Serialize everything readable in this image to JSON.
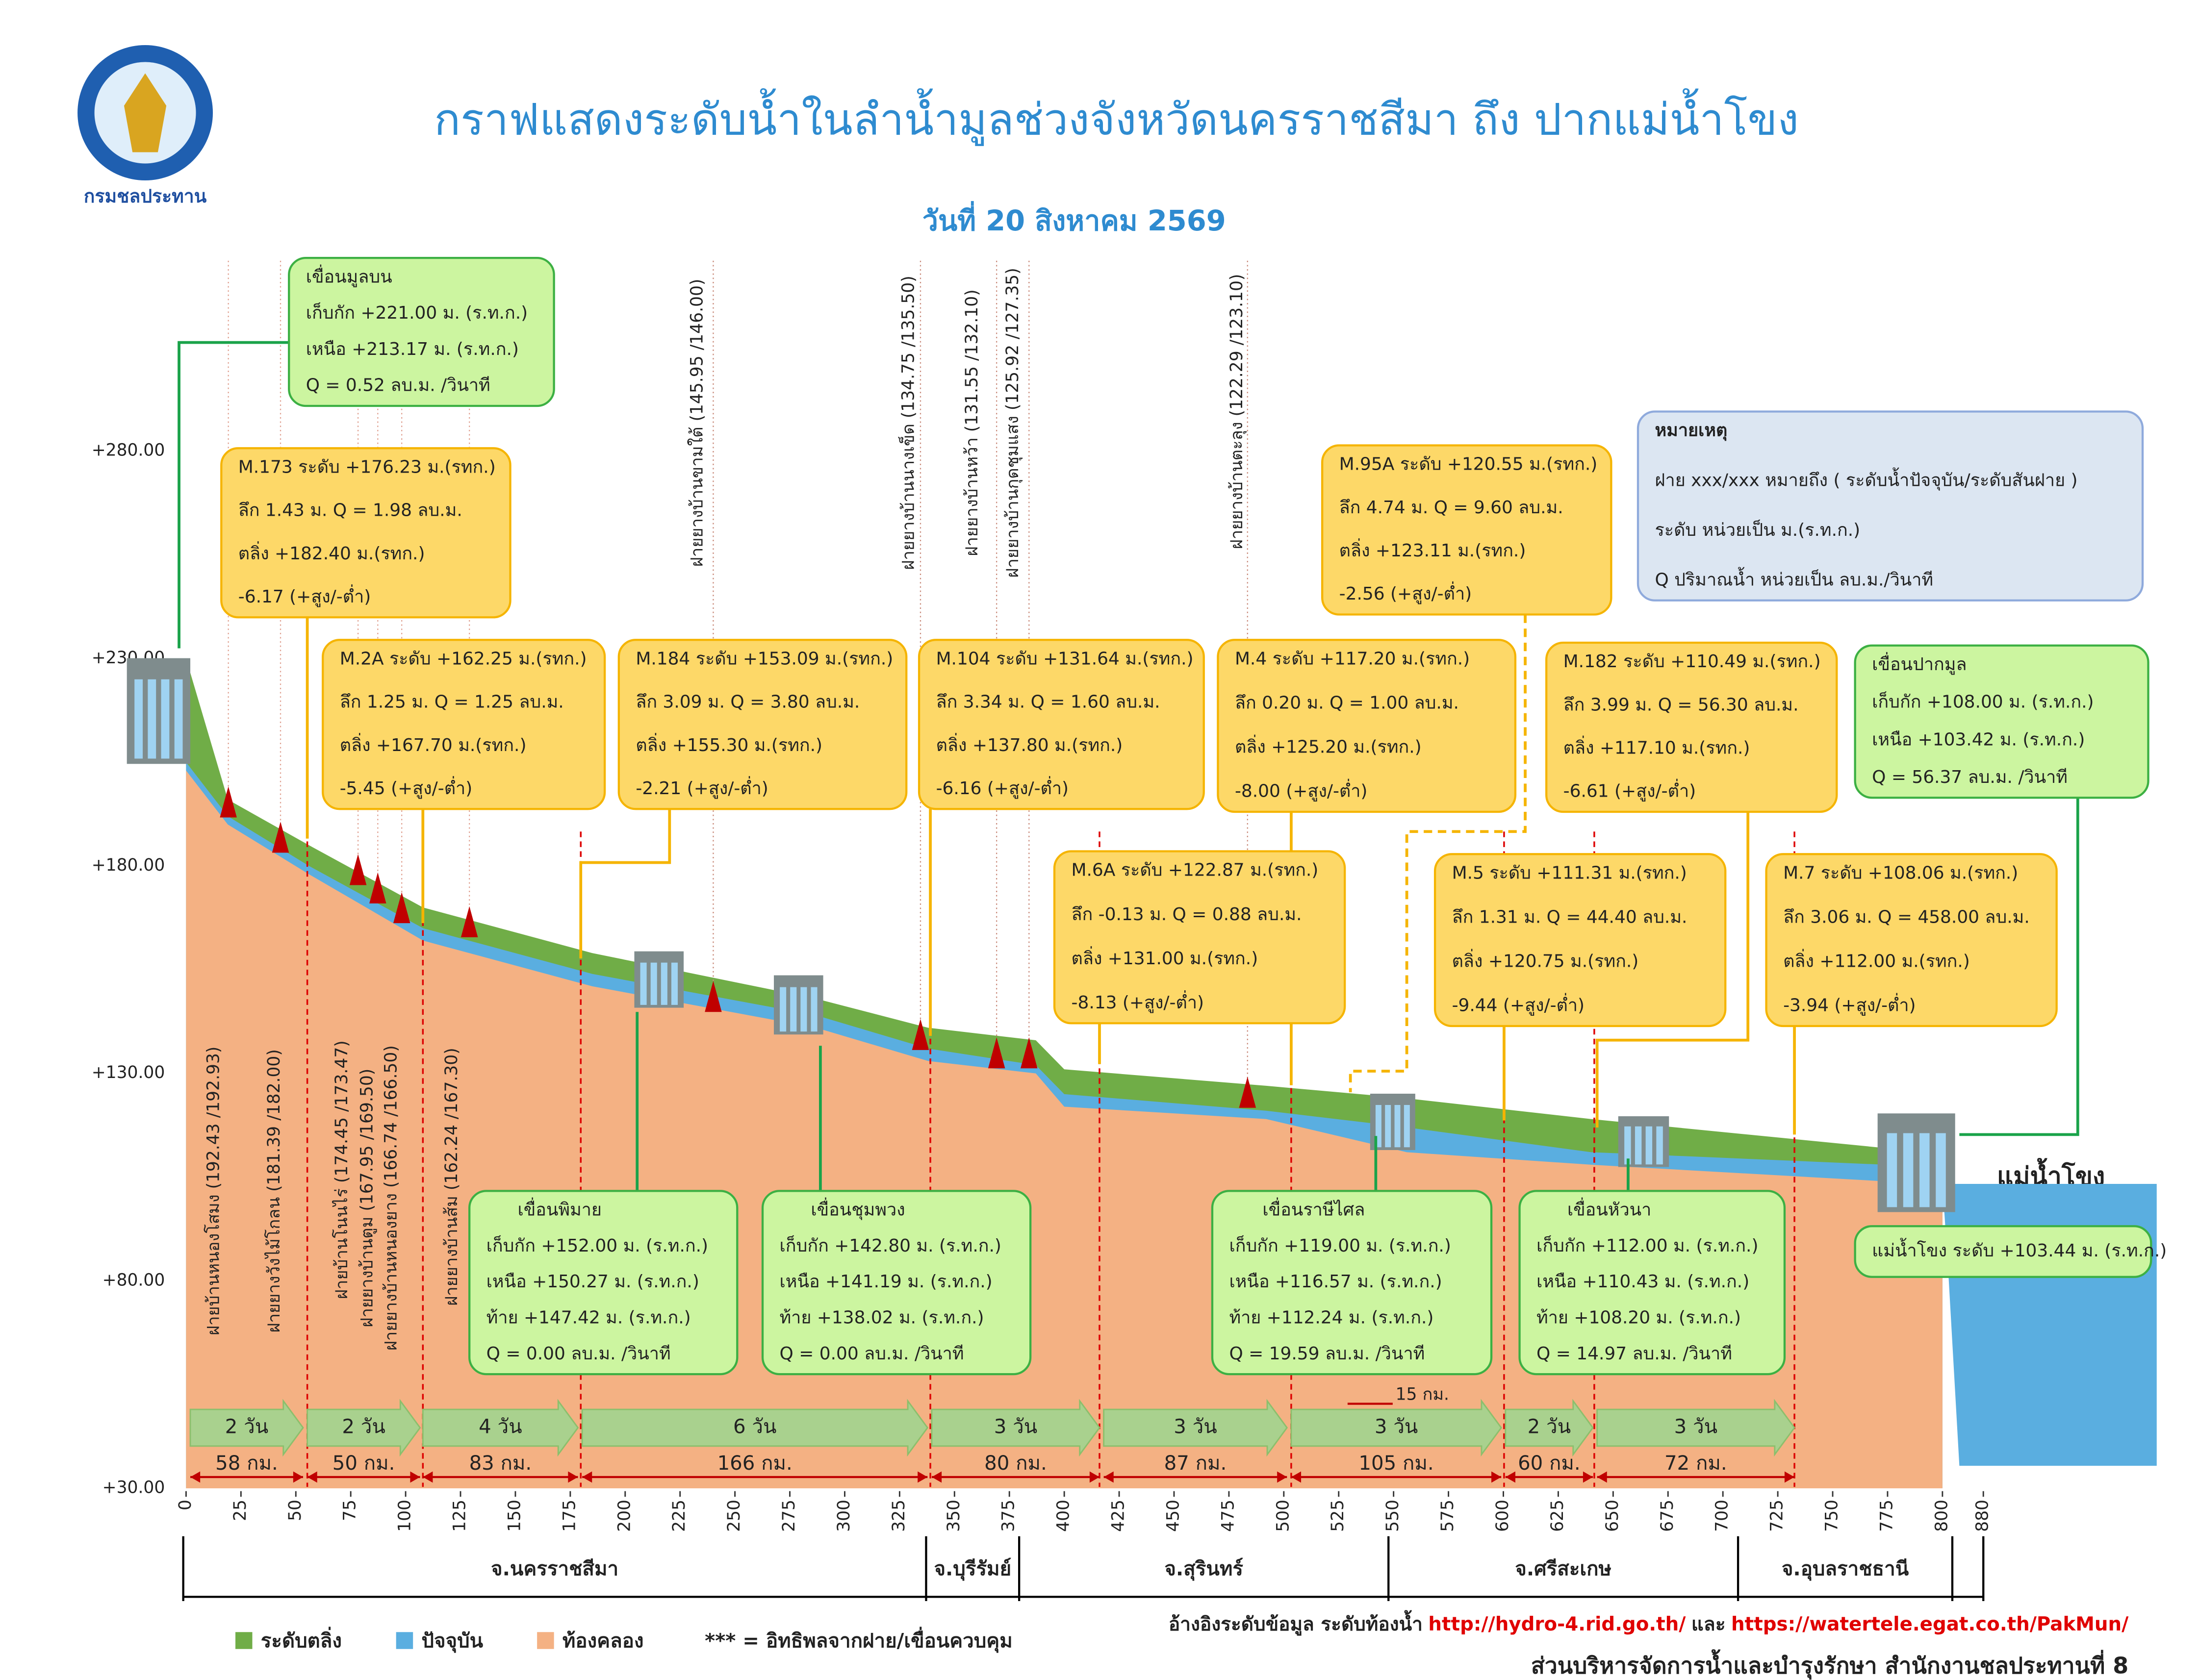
{
  "chart_data": {
    "type": "area",
    "title": "กราฟแสดงระดับน้ำในลำน้ำมูลช่วงจังหวัดนครราชสีมา ถึง ปากแม่น้ำโขง",
    "subtitle": "วันที่ 20 สิงหาคม 2569",
    "logo_text": "กรมชลประทาน",
    "x": [
      0,
      19,
      56,
      108,
      185,
      287,
      338,
      387,
      400,
      492,
      556,
      640,
      774,
      800
    ],
    "series": [
      {
        "name": "ระดับตลิ่ง",
        "color": "#70ad47",
        "values": [
          230,
          196,
          185,
          170,
          159,
          148,
          141,
          138,
          131,
          127,
          124,
          119,
          112,
          108
        ]
      },
      {
        "name": "ปัจจุบัน",
        "color": "#5aaee0",
        "values": [
          205,
          192,
          180,
          165,
          154,
          144,
          136,
          132,
          125,
          121,
          117,
          111,
          108,
          104
        ]
      },
      {
        "name": "ท้องคลอง",
        "color": "#f4b183",
        "values": [
          203,
          190,
          178,
          162,
          151,
          141,
          133,
          130,
          122,
          119,
          111,
          108,
          104,
          100
        ]
      }
    ],
    "xlim": [
      0,
      880
    ],
    "xticks": [
      0,
      25,
      50,
      75,
      100,
      125,
      150,
      175,
      200,
      225,
      250,
      275,
      300,
      325,
      350,
      375,
      400,
      425,
      450,
      475,
      500,
      525,
      550,
      575,
      600,
      625,
      650,
      675,
      700,
      725,
      750,
      775,
      800,
      880
    ],
    "ylim": [
      30,
      290
    ],
    "yticks": [
      {
        "value": 30,
        "label": "+30.00"
      },
      {
        "value": 80,
        "label": "+80.00"
      },
      {
        "value": 130,
        "label": "+130.00"
      },
      {
        "value": 180,
        "label": "+180.00"
      },
      {
        "value": 230,
        "label": "+230.00"
      },
      {
        "value": 280,
        "label": "+280.00"
      }
    ],
    "annotations": [
      {
        "lines": [
          "เขื่อนมูลบน",
          "เก็บกัก +221.00 ม. (ร.ท.ก.)",
          "เหนือ +213.17 ม. (ร.ท.ก.)",
          "Q = 0.52 ลบ.ม. /วินาที"
        ]
      },
      {
        "lines": [
          "M.173  ระดับ +176.23 ม.(รทก.)",
          "ลึก 1.43 ม. Q = 1.98 ลบ.ม.",
          "ตลิ่ง +182.40 ม.(รทก.)",
          "-6.17 (+สูง/-ต่ำ)"
        ]
      },
      {
        "lines": [
          "M.2A  ระดับ +162.25 ม.(รทก.)",
          "ลึก 1.25 ม. Q = 1.25 ลบ.ม.",
          "ตลิ่ง +167.70 ม.(รทก.)",
          "-5.45 (+สูง/-ต่ำ)"
        ]
      },
      {
        "lines": [
          "M.184  ระดับ +153.09 ม.(รทก.)",
          "ลึก 3.09 ม. Q = 3.80 ลบ.ม.",
          "ตลิ่ง +155.30 ม.(รทก.)",
          "-2.21 (+สูง/-ต่ำ)"
        ]
      },
      {
        "lines": [
          "M.104  ระดับ +131.64 ม.(รทก.)",
          "ลึก 3.34 ม. Q = 1.60 ลบ.ม.",
          "ตลิ่ง +137.80 ม.(รทก.)",
          "-6.16 (+สูง/-ต่ำ)"
        ]
      },
      {
        "lines": [
          "M.4  ระดับ +117.20 ม.(รทก.)",
          "ลึก 0.20 ม. Q = 1.00 ลบ.ม.",
          "ตลิ่ง +125.20 ม.(รทก.)",
          "-8.00 (+สูง/-ต่ำ)"
        ]
      },
      {
        "lines": [
          "M.95A ระดับ +120.55 ม.(รทก.)",
          "ลึก 4.74 ม. Q = 9.60 ลบ.ม.",
          "ตลิ่ง +123.11 ม.(รทก.)",
          "-2.56 (+สูง/-ต่ำ)"
        ]
      },
      {
        "lines": [
          "M.182  ระดับ +110.49 ม.(รทก.)",
          "ลึก 3.99 ม. Q = 56.30 ลบ.ม.",
          "ตลิ่ง +117.10 ม.(รทก.)",
          "-6.61 (+สูง/-ต่ำ)"
        ]
      },
      {
        "lines": [
          "M.6A  ระดับ +122.87 ม.(รทก.)",
          "ลึก -0.13 ม. Q = 0.88 ลบ.ม.",
          "ตลิ่ง +131.00 ม.(รทก.)",
          "-8.13 (+สูง/-ต่ำ)"
        ]
      },
      {
        "lines": [
          "M.5  ระดับ +111.31 ม.(รทก.)",
          "ลึก 1.31 ม. Q = 44.40 ลบ.ม.",
          "ตลิ่ง +120.75 ม.(รทก.)",
          "-9.44 (+สูง/-ต่ำ)"
        ]
      },
      {
        "lines": [
          "M.7  ระดับ +108.06 ม.(รทก.)",
          "ลึก 3.06 ม. Q = 458.00 ลบ.ม.",
          "ตลิ่ง +112.00 ม.(รทก.)",
          "-3.94 (+สูง/-ต่ำ)"
        ]
      },
      {
        "lines": [
          "เขื่อนปากมูล",
          "เก็บกัก +108.00 ม. (ร.ท.ก.)",
          "เหนือ +103.42 ม. (ร.ท.ก.)",
          "Q = 56.37 ลบ.ม. /วินาที"
        ]
      },
      {
        "lines": [
          "เขื่อนพิมาย",
          "เก็บกัก +152.00 ม. (ร.ท.ก.)",
          "เหนือ +150.27 ม. (ร.ท.ก.)",
          "ท้าย +147.42 ม. (ร.ท.ก.)",
          "Q = 0.00 ลบ.ม. /วินาที"
        ]
      },
      {
        "lines": [
          "เขื่อนชุมพวง",
          "เก็บกัก +142.80 ม. (ร.ท.ก.)",
          "เหนือ +141.19 ม. (ร.ท.ก.)",
          "ท้าย +138.02 ม. (ร.ท.ก.)",
          "Q = 0.00 ลบ.ม. /วินาที"
        ]
      },
      {
        "lines": [
          "เขื่อนราษีไศล",
          "เก็บกัก +119.00 ม. (ร.ท.ก.)",
          "เหนือ +116.57 ม. (ร.ท.ก.)",
          "ท้าย +112.24 ม. (ร.ท.ก.)",
          "Q = 19.59 ลบ.ม. /วินาที"
        ]
      },
      {
        "lines": [
          "เขื่อนหัวนา",
          "เก็บกัก +112.00 ม. (ร.ท.ก.)",
          "เหนือ +110.43 ม. (ร.ท.ก.)",
          "ท้าย +108.20 ม. (ร.ท.ก.)",
          "Q = 14.97 ลบ.ม. /วินาที"
        ]
      },
      {
        "lines": [
          "หมายเหตุ",
          "ฝาย xxx/xxx หมายถึง ( ระดับน้ำปัจจุบัน/ระดับสันฝาย )",
          "ระดับ หน่วยเป็น ม.(ร.ท.ก.)",
          "Q ปริมาณน้ำ หน่วยเป็น ลบ.ม./วินาที"
        ]
      },
      {
        "lines": [
          "แม่น้ำโขง ระดับ +103.44 ม. (ร.ท.ก.)"
        ]
      }
    ],
    "weirs": [
      "ฝายบ้านหนองโสมง  (192.43 /192.93)",
      "ฝายยางวังไม้โกลน  (181.39 /182.00)",
      "ฝายบ้านโนนไร่  (174.45 /173.47)",
      "ฝายยางบ้านตูม (167.95 /169.50)",
      "ฝายยางบ้านหนองยาง  (166.74 /166.50)",
      "ฝายยางบ้านส้ม  (162.24 /167.30)",
      "ฝายยางบ้านขามใต้  (145.95 /146.00)",
      "ฝายยางบ้านนางเข็ด  (134.75 /135.50)",
      "ฝายยางบ้านหว้า  (131.55 /132.10)",
      "ฝายยางบ้านกุดชุมแสง  (125.92 /127.35)",
      "ฝายยางบ้านตะลุง  (122.29 /123.10)"
    ],
    "travel": [
      {
        "days": "2 วัน",
        "distance": "58 กม."
      },
      {
        "days": "2 วัน",
        "distance": "50 กม."
      },
      {
        "days": "4 วัน",
        "distance": "83 กม."
      },
      {
        "days": "6 วัน",
        "distance": "166 กม."
      },
      {
        "days": "3 วัน",
        "distance": "80 กม."
      },
      {
        "days": "3 วัน",
        "distance": "87 กม."
      },
      {
        "days": "3 วัน",
        "distance": "105 กม."
      },
      {
        "days": "2 วัน",
        "distance": "60 กม."
      },
      {
        "days": "3 วัน",
        "distance": "72 กม."
      }
    ],
    "extra_distance": "15 กม.",
    "river_label": "แม่น้ำโขง",
    "provinces": [
      "จ.นครราชสีมา",
      "จ.บุรีรัมย์",
      "จ.สุรินทร์",
      "จ.ศรีสะเกษ",
      "จ.อุบลราชธานี"
    ],
    "legend_note": "*** = อิทธิพลจากฝาย/เขื่อนควบคุม",
    "reference": {
      "prefix": "อ้างอิงระดับข้อมูล ระดับท้องน้ำ",
      "url1": "http://hydro-4.rid.go.th/",
      "joiner": "และ",
      "url2": "https://watertele.egat.co.th/PakMun/"
    },
    "footer": "ส่วนบริหารจัดการน้ำและบำรุงรักษา สำนักงานชลประทานที่ 8"
  }
}
